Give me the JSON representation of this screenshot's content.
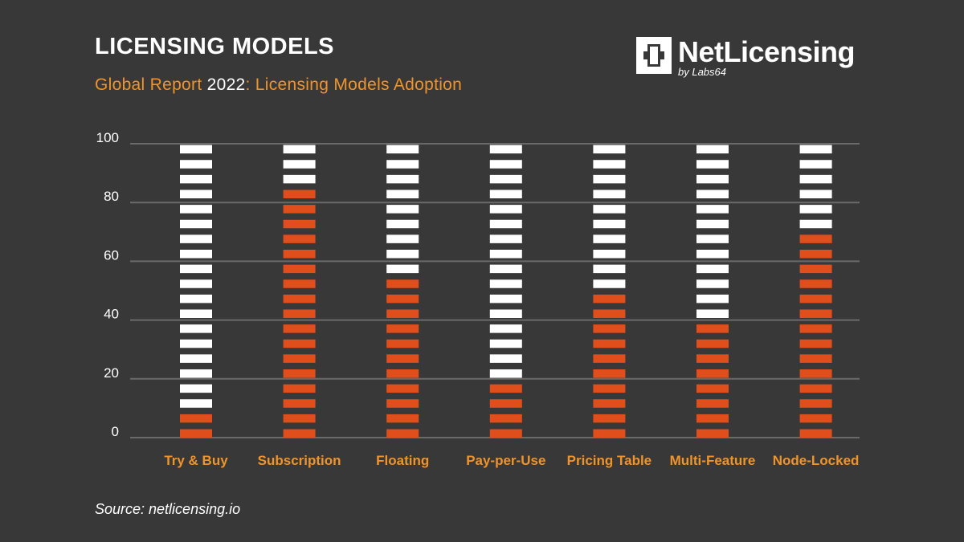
{
  "header": {
    "title": "LICENSING MODELS",
    "subtitle_pre": "Global Report ",
    "subtitle_year": "2022",
    "subtitle_post": ": Licensing Models Adoption"
  },
  "logo": {
    "name": "NetLicensing",
    "byline": "by Labs64"
  },
  "footer": {
    "source": "Source: netlicensing.io"
  },
  "colors": {
    "background": "#383838",
    "adopted": "#e04e1c",
    "remaining": "#ffffff",
    "label": "#f0942a",
    "grid": "#6a6a6a"
  },
  "chart_data": {
    "type": "bar",
    "style": "stacked segmented bars (orange = adoption, white = remainder to 100)",
    "categories": [
      "Try & Buy",
      "Subscription",
      "Floating",
      "Pay-per-Use",
      "Pricing Table",
      "Multi-Feature",
      "Node-Locked"
    ],
    "values": [
      11,
      84,
      53,
      22,
      48,
      38,
      69
    ],
    "ylim": [
      0,
      100
    ],
    "yticks": [
      0,
      20,
      40,
      60,
      80,
      100
    ],
    "grid": true,
    "title": "",
    "xlabel": "",
    "ylabel": ""
  }
}
